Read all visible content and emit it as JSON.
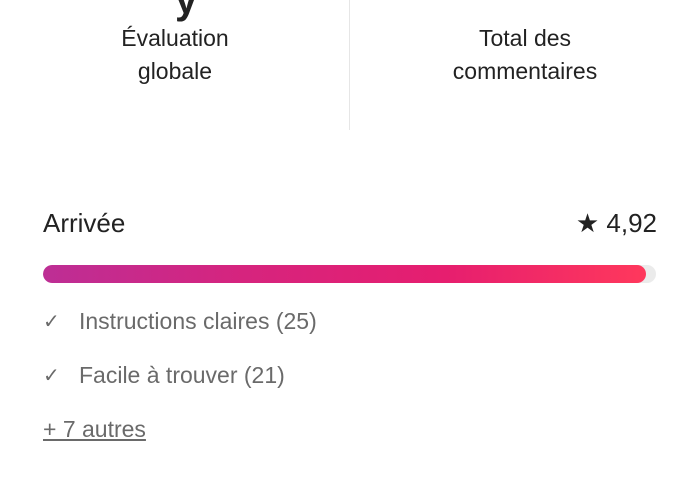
{
  "summary": {
    "overall_label": "Évaluation globale",
    "total_label": "Total des commentaires"
  },
  "category": {
    "name": "Arrivée",
    "rating": "4,92",
    "rating_value": 4.92,
    "rating_max": 5,
    "icon": "star-icon",
    "gradient": [
      "#bd2e95",
      "#d6247e",
      "#e61e6f",
      "#ff385c"
    ],
    "highlights": [
      {
        "label": "Instructions claires (25)"
      },
      {
        "label": "Facile à trouver (21)"
      }
    ],
    "more_link": "+ 7 autres"
  }
}
